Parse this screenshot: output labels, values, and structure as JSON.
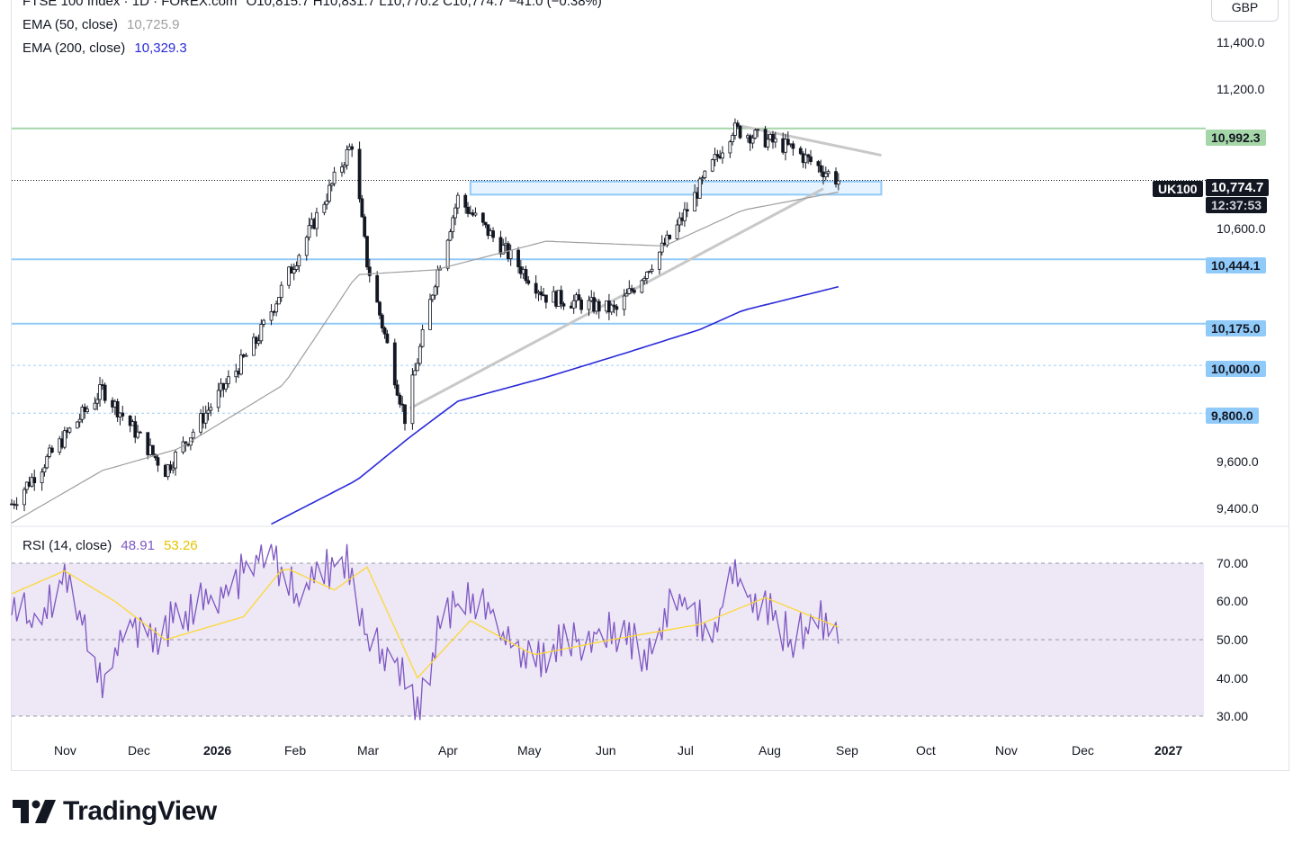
{
  "header": {
    "title": "FTSE 100 Index · 1D · FOREX.com",
    "ohlc": "O10,815.7  H10,831.7  L10,770.2  C10,774.7  −41.0 (−0.38%)",
    "currency": "GBP"
  },
  "legend": {
    "ema50_label": "EMA (50, close)",
    "ema50_value": "10,725.9",
    "ema200_label": "EMA (200, close)",
    "ema200_value": "10,329.3",
    "rsi_label": "RSI (14, close)",
    "rsi_value": "48.91",
    "rsi_ma_value": "53.26"
  },
  "price_axis": {
    "ticks": [
      "11,400.0",
      "11,200.0",
      "10,600.0",
      "9,600.0",
      "9,400.0"
    ]
  },
  "price_badges": {
    "resistance": "10,992.3",
    "symbol": "UK100",
    "last_price": "10,774.7",
    "countdown": "12:37:53",
    "support_1": "10,444.1",
    "support_2": "10,175.0",
    "level_10000": "10,000.0",
    "level_9800": "9,800.0"
  },
  "rsi_axis": {
    "ticks": [
      "70.00",
      "60.00",
      "50.00",
      "40.00",
      "30.00"
    ]
  },
  "time_axis": {
    "labels": [
      "Nov",
      "Dec",
      "2026",
      "Feb",
      "Mar",
      "Apr",
      "May",
      "Jun",
      "Jul",
      "Aug",
      "Sep",
      "Oct",
      "Nov",
      "Dec",
      "2027"
    ]
  },
  "brand": {
    "name": "TradingView"
  },
  "colors": {
    "up": "#ffffff",
    "down": "#131722",
    "ema50": "#9e9e9e",
    "ema200": "#2929d9",
    "rsi": "#7e57c2",
    "rsi_ma": "#fdd835",
    "rsi_band": "#ede7f6",
    "resistance": "#a5d6a7",
    "support": "#90caf9",
    "zone": "#bbdefb"
  },
  "chart_data": [
    {
      "type": "candlestick",
      "title": "FTSE 100 Index · 1D · FOREX.com",
      "ylim": [
        9330,
        11530
      ],
      "x_range": [
        "2025-10-15",
        "2027-01-31"
      ],
      "key_points": {
        "dates": [
          "2025-10-15",
          "2025-11-20",
          "2025-12-15",
          "2026-01-20",
          "2026-02-27",
          "2026-03-05",
          "2026-03-20",
          "2026-04-01",
          "2026-04-10",
          "2026-05-15",
          "2026-06-12",
          "2026-07-05",
          "2026-07-28",
          "2026-08-20",
          "2026-09-08"
        ],
        "close": [
          9420,
          9900,
          9560,
          10100,
          10930,
          10430,
          9780,
          10360,
          10700,
          10290,
          10230,
          10560,
          10990,
          10910,
          10774.7
        ]
      },
      "ema_50": {
        "dates": [
          "2025-10-15",
          "2025-11-20",
          "2025-12-20",
          "2026-01-31",
          "2026-03-01",
          "2026-04-01",
          "2026-05-15",
          "2026-07-01",
          "2026-08-01",
          "2026-09-08"
        ],
        "values": [
          9340,
          9560,
          9650,
          9920,
          10380,
          10400,
          10520,
          10500,
          10650,
          10725.9
        ]
      },
      "ema_200": {
        "dates": [
          "2026-01-25",
          "2026-03-01",
          "2026-03-22",
          "2026-04-10",
          "2026-05-15",
          "2026-06-15",
          "2026-07-15",
          "2026-08-01",
          "2026-09-08"
        ],
        "values": [
          9330,
          9520,
          9700,
          9850,
          9950,
          10050,
          10150,
          10230,
          10329.3
        ]
      },
      "horizontal_levels": [
        10992.3,
        10444.1,
        10175.0,
        10000.0,
        9800.0
      ],
      "zone": [
        10715,
        10770
      ],
      "last": 10774.7
    },
    {
      "type": "line",
      "title": "RSI (14, close)",
      "ylim": [
        30,
        70
      ],
      "bands": [
        30,
        50,
        70
      ],
      "series": [
        {
          "name": "RSI (14, close)",
          "dates": [
            "2025-10-15",
            "2025-10-25",
            "2025-11-05",
            "2025-11-20",
            "2025-12-01",
            "2025-12-10",
            "2025-12-20",
            "2026-01-10",
            "2026-01-25",
            "2026-02-05",
            "2026-02-15",
            "2026-02-25",
            "2026-03-05",
            "2026-03-20",
            "2026-03-25",
            "2026-04-05",
            "2026-04-20",
            "2026-05-05",
            "2026-05-20",
            "2026-06-10",
            "2026-06-25",
            "2026-07-05",
            "2026-07-20",
            "2026-07-28",
            "2026-08-10",
            "2026-08-20",
            "2026-09-01",
            "2026-09-08"
          ],
          "values": [
            62,
            51,
            68,
            38,
            55,
            51,
            56,
            64,
            74,
            62,
            67,
            72,
            50,
            42,
            30,
            58,
            62,
            43,
            48,
            53,
            46,
            61,
            52,
            66,
            58,
            50,
            55,
            48.91
          ]
        },
        {
          "name": "53.26",
          "dates": [
            "2025-10-15",
            "2025-11-05",
            "2025-11-25",
            "2025-12-15",
            "2026-01-15",
            "2026-01-31",
            "2026-02-20",
            "2026-03-05",
            "2026-03-25",
            "2026-04-15",
            "2026-05-10",
            "2026-06-10",
            "2026-07-15",
            "2026-08-10",
            "2026-09-08"
          ],
          "values": [
            62,
            68,
            60,
            50,
            56,
            69,
            63,
            69,
            40,
            55,
            46,
            50,
            54,
            61,
            53.26
          ]
        }
      ]
    }
  ]
}
